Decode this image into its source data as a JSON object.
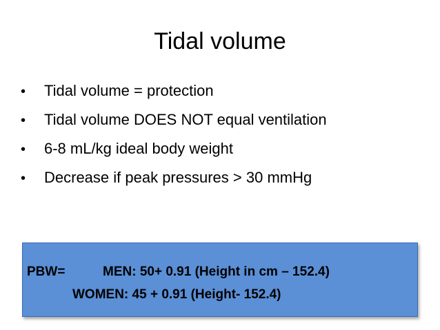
{
  "slide": {
    "title": "Tidal volume",
    "bullets": [
      "Tidal volume = protection",
      "Tidal volume DOES NOT equal ventilation",
      "6-8 mL/kg ideal body weight",
      "Decrease if peak pressures > 30 mmHg"
    ],
    "bullet_symbol": "•",
    "formula_box": {
      "label": "PBW=",
      "men": "MEN: 50+ 0.91 (Height in cm – 152.4)",
      "women": "WOMEN: 45 + 0.91 (Height- 152.4)",
      "fill_color": "#5b8fd6"
    }
  }
}
